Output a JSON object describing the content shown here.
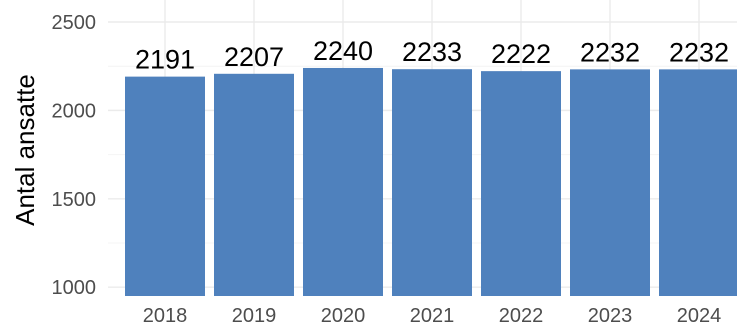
{
  "chart_data": {
    "type": "bar",
    "categories": [
      "2018",
      "2019",
      "2020",
      "2021",
      "2022",
      "2023",
      "2024"
    ],
    "values": [
      2191,
      2207,
      2240,
      2233,
      2222,
      2232,
      2232
    ],
    "data_labels": [
      "2191",
      "2207",
      "2240",
      "2233",
      "2222",
      "2232",
      "2232"
    ],
    "title": "",
    "xlabel": "",
    "ylabel": "Antal ansatte",
    "ylim": [
      950,
      2500
    ],
    "yticks": [
      1000,
      1500,
      2000,
      2500
    ],
    "ytick_labels": [
      "1000",
      "1500",
      "2000",
      "2500"
    ],
    "grid": true,
    "legend": "none",
    "colors": {
      "bar": "#4f81bd",
      "grid_major": "#ebebeb",
      "grid_minor": "#f4f4f4",
      "tick_text": "#4d4d4d",
      "label_text": "#000000"
    }
  }
}
